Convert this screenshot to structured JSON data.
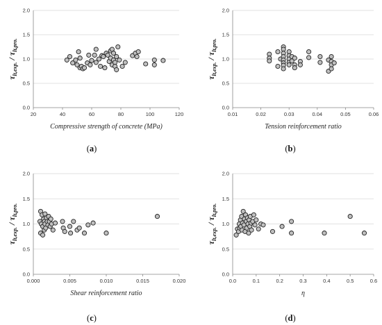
{
  "chart_data": [
    {
      "type": "scatter",
      "panel_label": "a",
      "xlabel": "Compressive strength of concrete (MPa)",
      "ylabel_main": "τ",
      "ylabel_sub1": "lt,exp.",
      "ylabel_mid": " / τ",
      "ylabel_sub2": "lt,pro.",
      "xlim": [
        20,
        120
      ],
      "ylim": [
        0,
        2.0
      ],
      "xticks": [
        "20",
        "40",
        "60",
        "80",
        "100",
        "120"
      ],
      "yticks": [
        "0.0",
        "0.5",
        "1.0",
        "1.5",
        "2.0"
      ],
      "grid": "horizontal",
      "points": [
        [
          43,
          0.98
        ],
        [
          45,
          1.05
        ],
        [
          47,
          0.92
        ],
        [
          49,
          0.98
        ],
        [
          50,
          0.88
        ],
        [
          51,
          1.15
        ],
        [
          52,
          1.02
        ],
        [
          52,
          0.82
        ],
        [
          53,
          0.85
        ],
        [
          54,
          0.8
        ],
        [
          55,
          0.82
        ],
        [
          57,
          0.92
        ],
        [
          58,
          1.08
        ],
        [
          59,
          0.88
        ],
        [
          60,
          0.97
        ],
        [
          62,
          1.08
        ],
        [
          63,
          1.2
        ],
        [
          63,
          0.93
        ],
        [
          65,
          1.0
        ],
        [
          66,
          0.85
        ],
        [
          67,
          1.07
        ],
        [
          68,
          1.05
        ],
        [
          69,
          0.82
        ],
        [
          70,
          1.12
        ],
        [
          71,
          1.08
        ],
        [
          72,
          0.95
        ],
        [
          73,
          1.02
        ],
        [
          73,
          1.17
        ],
        [
          74,
          0.88
        ],
        [
          74,
          1.2
        ],
        [
          75,
          0.98
        ],
        [
          75,
          1.12
        ],
        [
          76,
          0.93
        ],
        [
          76,
          0.85
        ],
        [
          77,
          1.05
        ],
        [
          77,
          0.78
        ],
        [
          78,
          1.25
        ],
        [
          79,
          0.98
        ],
        [
          81,
          0.85
        ],
        [
          83,
          0.93
        ],
        [
          88,
          1.07
        ],
        [
          90,
          1.12
        ],
        [
          91,
          1.05
        ],
        [
          92,
          1.15
        ],
        [
          97,
          0.9
        ],
        [
          103,
          0.98
        ],
        [
          103,
          0.88
        ],
        [
          109,
          0.97
        ]
      ]
    },
    {
      "type": "scatter",
      "panel_label": "b",
      "xlabel": "Tension reinforcement ratio",
      "ylabel_main": "τ",
      "ylabel_sub1": "lt,exp.",
      "ylabel_mid": " / τ",
      "ylabel_sub2": "lt,pro.",
      "xlim": [
        0.01,
        0.06
      ],
      "ylim": [
        0,
        2.0
      ],
      "xticks": [
        "0.01",
        "0.02",
        "0.03",
        "0.04",
        "0.05",
        "0.06"
      ],
      "yticks": [
        "0.0",
        "0.5",
        "1.0",
        "1.5",
        "2.0"
      ],
      "grid": "horizontal",
      "points": [
        [
          0.023,
          1.1
        ],
        [
          0.023,
          1.02
        ],
        [
          0.023,
          0.96
        ],
        [
          0.026,
          0.85
        ],
        [
          0.026,
          1.15
        ],
        [
          0.027,
          1.0
        ],
        [
          0.028,
          1.25
        ],
        [
          0.028,
          1.2
        ],
        [
          0.028,
          1.12
        ],
        [
          0.028,
          1.05
        ],
        [
          0.028,
          0.98
        ],
        [
          0.028,
          0.92
        ],
        [
          0.028,
          0.87
        ],
        [
          0.028,
          0.8
        ],
        [
          0.03,
          1.15
        ],
        [
          0.03,
          1.07
        ],
        [
          0.03,
          1.0
        ],
        [
          0.03,
          0.93
        ],
        [
          0.03,
          0.88
        ],
        [
          0.031,
          1.05
        ],
        [
          0.031,
          0.96
        ],
        [
          0.032,
          1.02
        ],
        [
          0.032,
          0.88
        ],
        [
          0.032,
          0.82
        ],
        [
          0.034,
          0.95
        ],
        [
          0.034,
          0.88
        ],
        [
          0.037,
          1.15
        ],
        [
          0.037,
          1.03
        ],
        [
          0.041,
          1.05
        ],
        [
          0.041,
          0.93
        ],
        [
          0.044,
          0.75
        ],
        [
          0.044,
          0.98
        ],
        [
          0.045,
          1.05
        ],
        [
          0.045,
          0.95
        ],
        [
          0.045,
          0.88
        ],
        [
          0.045,
          0.8
        ],
        [
          0.046,
          0.92
        ]
      ]
    },
    {
      "type": "scatter",
      "panel_label": "c",
      "xlabel": "Shear reinforcement ratio",
      "ylabel_main": "τ",
      "ylabel_sub1": "lt,exp.",
      "ylabel_mid": " / τ",
      "ylabel_sub2": "lt,pro.",
      "xlim": [
        0,
        0.02
      ],
      "ylim": [
        0,
        2.0
      ],
      "xticks": [
        "0.000",
        "0.005",
        "0.010",
        "0.015",
        "0.020"
      ],
      "yticks": [
        "0.0",
        "0.5",
        "1.0",
        "1.5",
        "2.0"
      ],
      "grid": "horizontal",
      "points": [
        [
          0.0009,
          1.05
        ],
        [
          0.001,
          1.25
        ],
        [
          0.001,
          0.82
        ],
        [
          0.0011,
          1.0
        ],
        [
          0.0012,
          1.18
        ],
        [
          0.0013,
          0.95
        ],
        [
          0.0013,
          0.78
        ],
        [
          0.0014,
          1.1
        ],
        [
          0.0015,
          1.05
        ],
        [
          0.0015,
          0.88
        ],
        [
          0.0016,
          1.2
        ],
        [
          0.0016,
          1.0
        ],
        [
          0.0017,
          0.92
        ],
        [
          0.0018,
          1.12
        ],
        [
          0.0019,
          1.05
        ],
        [
          0.002,
          0.98
        ],
        [
          0.0021,
          1.15
        ],
        [
          0.0022,
          1.05
        ],
        [
          0.0023,
          0.95
        ],
        [
          0.0024,
          1.1
        ],
        [
          0.0025,
          1.0
        ],
        [
          0.0027,
          0.88
        ],
        [
          0.003,
          1.02
        ],
        [
          0.004,
          1.05
        ],
        [
          0.0041,
          0.92
        ],
        [
          0.0043,
          0.85
        ],
        [
          0.005,
          0.95
        ],
        [
          0.0051,
          0.82
        ],
        [
          0.0055,
          1.05
        ],
        [
          0.006,
          0.88
        ],
        [
          0.0063,
          0.92
        ],
        [
          0.007,
          0.82
        ],
        [
          0.0075,
          0.98
        ],
        [
          0.0082,
          1.02
        ],
        [
          0.01,
          0.82
        ],
        [
          0.017,
          1.15
        ]
      ]
    },
    {
      "type": "scatter",
      "panel_label": "d",
      "xlabel": "η",
      "ylabel_main": "τ",
      "ylabel_sub1": "lt,exp.",
      "ylabel_mid": " / τ",
      "ylabel_sub2": "lt,pro.",
      "xlim": [
        0,
        0.6
      ],
      "ylim": [
        0,
        2.0
      ],
      "xticks": [
        "0.0",
        "0.1",
        "0.2",
        "0.3",
        "0.4",
        "0.5",
        "0.6"
      ],
      "yticks": [
        "0.0",
        "0.5",
        "1.0",
        "1.5",
        "2.0"
      ],
      "grid": "horizontal",
      "points": [
        [
          0.015,
          0.78
        ],
        [
          0.02,
          0.9
        ],
        [
          0.025,
          0.85
        ],
        [
          0.028,
          1.0
        ],
        [
          0.03,
          0.92
        ],
        [
          0.033,
          1.08
        ],
        [
          0.035,
          0.95
        ],
        [
          0.038,
          1.15
        ],
        [
          0.04,
          0.88
        ],
        [
          0.042,
          1.02
        ],
        [
          0.045,
          1.25
        ],
        [
          0.048,
          0.98
        ],
        [
          0.05,
          1.1
        ],
        [
          0.053,
          0.85
        ],
        [
          0.055,
          1.18
        ],
        [
          0.058,
          1.05
        ],
        [
          0.06,
          0.92
        ],
        [
          0.063,
          1.12
        ],
        [
          0.065,
          1.0
        ],
        [
          0.068,
          0.82
        ],
        [
          0.07,
          1.08
        ],
        [
          0.073,
          0.95
        ],
        [
          0.075,
          1.15
        ],
        [
          0.078,
          1.02
        ],
        [
          0.08,
          0.88
        ],
        [
          0.085,
          1.05
        ],
        [
          0.09,
          1.18
        ],
        [
          0.095,
          0.98
        ],
        [
          0.1,
          1.08
        ],
        [
          0.11,
          0.9
        ],
        [
          0.12,
          1.0
        ],
        [
          0.13,
          0.98
        ],
        [
          0.17,
          0.85
        ],
        [
          0.21,
          0.95
        ],
        [
          0.25,
          1.05
        ],
        [
          0.25,
          0.82
        ],
        [
          0.39,
          0.82
        ],
        [
          0.5,
          1.15
        ],
        [
          0.56,
          0.82
        ]
      ]
    }
  ]
}
